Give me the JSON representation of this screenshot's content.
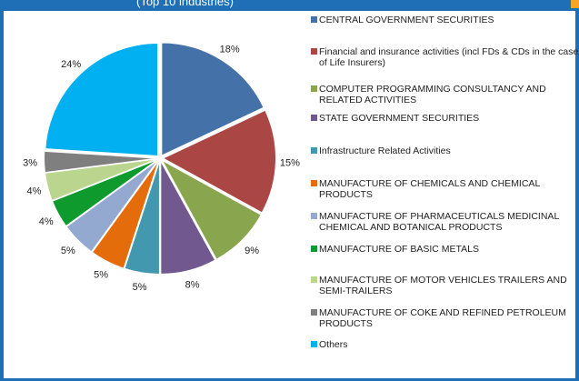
{
  "header": {
    "title_fragment": "(Top 10 industries)"
  },
  "chart_data": {
    "type": "pie",
    "legend_position": "right",
    "slices": [
      {
        "label": "CENTRAL GOVERNMENT SECURITIES",
        "value": 18,
        "value_label": "18%",
        "color": "#4472a8"
      },
      {
        "label": "Financial and insurance activities (incl FDs & CDs in the case of Life Insurers)",
        "value": 15,
        "value_label": "15%",
        "color": "#aa4644"
      },
      {
        "label": "COMPUTER PROGRAMMING  CONSULTANCY AND RELATED ACTIVITIES",
        "value": 9,
        "value_label": "9%",
        "color": "#89a54e"
      },
      {
        "label": "STATE GOVERNMENT SECURITIES",
        "value": 8,
        "value_label": "8%",
        "color": "#71588f"
      },
      {
        "label": "Infrastructure Related Activities",
        "value": 5,
        "value_label": "5%",
        "color": "#4198af"
      },
      {
        "label": "MANUFACTURE OF CHEMICALS AND CHEMICAL PRODUCTS",
        "value": 5,
        "value_label": "5%",
        "color": "#e46c0a"
      },
      {
        "label": "MANUFACTURE OF PHARMACEUTICALS  MEDICINAL CHEMICAL AND BOTANICAL PRODUCTS",
        "value": 5,
        "value_label": "5%",
        "color": "#93a9d0"
      },
      {
        "label": "MANUFACTURE OF BASIC METALS",
        "value": 4,
        "value_label": "4%",
        "color": "#0e9a2c"
      },
      {
        "label": "MANUFACTURE OF MOTOR VEHICLES  TRAILERS AND SEMI-TRAILERS",
        "value": 4,
        "value_label": "4%",
        "color": "#b9d58e"
      },
      {
        "label": "MANUFACTURE OF COKE AND REFINED PETROLEUM PRODUCTS",
        "value": 3,
        "value_label": "3%",
        "color": "#7f7f7f"
      },
      {
        "label": "Others",
        "value": 24,
        "value_label": "24%",
        "color": "#00b0f0"
      }
    ]
  }
}
